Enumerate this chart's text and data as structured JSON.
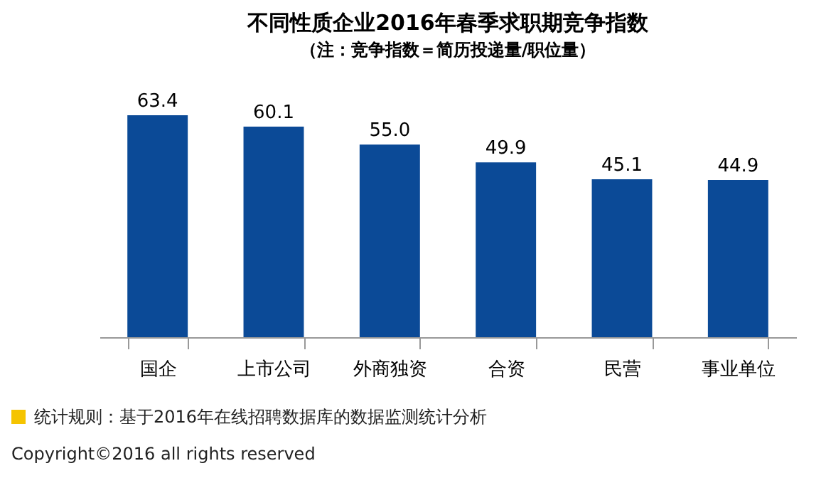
{
  "chart_data": {
    "type": "bar",
    "title": "不同性质企业2016年春季求职期竞争指数",
    "subtitle": "（注：竞争指数＝简历投递量/职位量）",
    "categories": [
      "国企",
      "上市公司",
      "外商独资",
      "合资",
      "民营",
      "事业单位"
    ],
    "values": [
      63.4,
      60.1,
      55.0,
      49.9,
      45.1,
      44.9
    ],
    "color": "#0b4a97",
    "data_labels": true,
    "value_labels": [
      "63.4",
      "60.1",
      "55.0",
      "49.9",
      "45.1",
      "44.9"
    ],
    "annotations": [
      "统计规则：基于2016年在线招聘数据库的数据监测统计分析",
      "Copyright©2016 all rights reserved"
    ]
  }
}
